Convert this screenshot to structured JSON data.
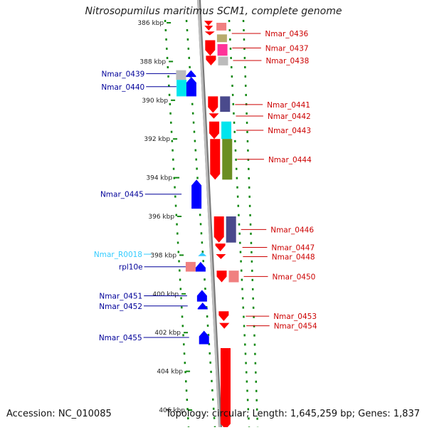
{
  "title": "Nitrosopumilus maritimus SCM1, complete genome",
  "accession": "Accession: NC_010085",
  "topology": "Topology: circular; Length: 1,645,259 bp; Genes: 1,837",
  "colors": {
    "red": "#ff0000",
    "blue": "#0000ff",
    "label_red": "#cc0000",
    "label_blue": "#000099",
    "rna_cyan": "#33ccff",
    "pink": "#f08080",
    "magenta": "#ff3399",
    "grey": "#bbbbbb",
    "khaki": "#b8ac6e",
    "navy": "#4a4a8c",
    "cyan": "#00e5ee",
    "olive": "#6b8e23",
    "tick_green": "#118811"
  },
  "kbp_ticks": [
    {
      "label": "386 kbp",
      "kbp": 386
    },
    {
      "label": "388 kbp",
      "kbp": 388
    },
    {
      "label": "390 kbp",
      "kbp": 390
    },
    {
      "label": "392 kbp",
      "kbp": 392
    },
    {
      "label": "394 kbp",
      "kbp": 394
    },
    {
      "label": "396 kbp",
      "kbp": 396
    },
    {
      "label": "398 kbp",
      "kbp": 398
    },
    {
      "label": "400 kbp",
      "kbp": 400
    },
    {
      "label": "402 kbp",
      "kbp": 402
    },
    {
      "label": "404 kbp",
      "kbp": 404
    },
    {
      "label": "406 kbp",
      "kbp": 406
    }
  ],
  "genes_forward": [
    {
      "name": "Nmar_0436",
      "start": 386.45,
      "end": 386.65
    },
    {
      "name": "Nmar_0437",
      "start": 386.9,
      "end": 387.7
    },
    {
      "name": "Nmar_0438",
      "start": 387.7,
      "end": 388.2
    },
    {
      "name": "Nmar_0441",
      "start": 389.8,
      "end": 390.65
    },
    {
      "name": "Nmar_0442",
      "start": 390.68,
      "end": 390.95
    },
    {
      "name": "Nmar_0443",
      "start": 391.1,
      "end": 392.0
    },
    {
      "name": "Nmar_0444",
      "start": 392.0,
      "end": 394.1
    },
    {
      "name": "Nmar_0446",
      "start": 396.0,
      "end": 397.35
    },
    {
      "name": "Nmar_0447",
      "start": 397.4,
      "end": 397.8
    },
    {
      "name": "Nmar_0448",
      "start": 397.95,
      "end": 398.2
    },
    {
      "name": "Nmar_0450",
      "start": 398.8,
      "end": 399.4
    },
    {
      "name": "Nmar_0453",
      "start": 400.9,
      "end": 401.4
    },
    {
      "name": "Nmar_0454",
      "start": 401.5,
      "end": 401.8
    },
    {
      "name": "",
      "start": 402.8,
      "end": 407.0
    }
  ],
  "genes_forward_extra": [
    {
      "start": 385.9,
      "end": 386.15
    },
    {
      "start": 386.15,
      "end": 386.4
    }
  ],
  "genes_reverse": [
    {
      "name": "Nmar_0439",
      "start": 388.45,
      "end": 388.8
    },
    {
      "name": "Nmar_0440",
      "start": 388.8,
      "end": 389.8
    },
    {
      "name": "Nmar_0445",
      "start": 394.1,
      "end": 395.6
    },
    {
      "name": "rpl10e",
      "start": 398.35,
      "end": 398.85
    },
    {
      "name": "Nmar_0451",
      "start": 399.8,
      "end": 400.4
    },
    {
      "name": "Nmar_0452",
      "start": 400.45,
      "end": 400.8
    },
    {
      "name": "Nmar_0455",
      "start": 401.9,
      "end": 402.6
    }
  ],
  "rna_reverse": [
    {
      "name": "Nmar_R0018",
      "start": 397.85,
      "end": 398.05
    }
  ],
  "features_forward": [
    {
      "color": "pink",
      "start": 386.0,
      "end": 386.4
    },
    {
      "color": "khaki",
      "start": 386.6,
      "end": 387.0
    },
    {
      "color": "magenta",
      "start": 387.1,
      "end": 387.7
    },
    {
      "color": "grey",
      "start": 387.75,
      "end": 388.2
    },
    {
      "color": "navy",
      "start": 389.8,
      "end": 390.6
    },
    {
      "color": "cyan",
      "start": 391.1,
      "end": 392.0
    },
    {
      "color": "olive",
      "start": 392.0,
      "end": 394.1
    },
    {
      "color": "navy",
      "start": 396.0,
      "end": 397.35
    },
    {
      "color": "pink",
      "start": 398.8,
      "end": 399.4
    }
  ],
  "features_reverse": [
    {
      "color": "grey",
      "start": 388.45,
      "end": 388.95
    },
    {
      "color": "cyan",
      "start": 388.95,
      "end": 389.8
    },
    {
      "color": "pink",
      "start": 398.35,
      "end": 398.85
    }
  ]
}
